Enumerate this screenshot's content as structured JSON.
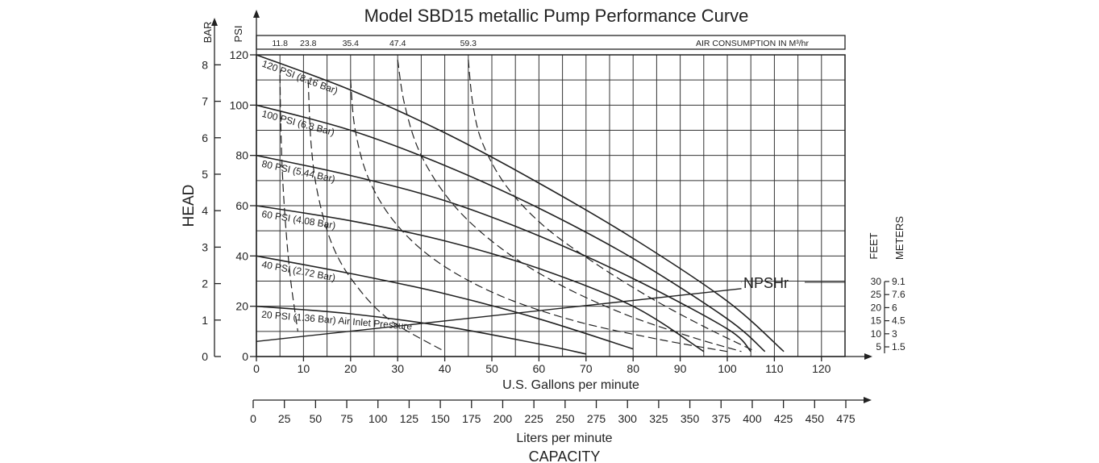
{
  "chart_data": {
    "type": "line",
    "title": "Model  SBD15 metallic Pump Performance Curve",
    "colors": {
      "ink": "#222222",
      "grid": "#333333",
      "background": "#ffffff"
    },
    "xlabel": "U.S. Gallons per minute",
    "x2label": "Liters per minute",
    "capacity_label": "CAPACITY",
    "head_label": "HEAD",
    "bar_label": "BAR",
    "psi_label": "PSI",
    "feet_label": "FEET",
    "meters_label": "METERS",
    "npsh_label": "NPSHr",
    "air_consumption_label": "AIR CONSUMPTION IN M³/hr",
    "xlim": [
      0,
      125
    ],
    "ylim": [
      0,
      120
    ],
    "x_ticks": [
      "0",
      "10",
      "20",
      "30",
      "40",
      "50",
      "60",
      "70",
      "80",
      "90",
      "100",
      "110",
      "120"
    ],
    "x2_ticks": [
      "0",
      "25",
      "50",
      "75",
      "100",
      "125",
      "150",
      "175",
      "200",
      "225",
      "250",
      "275",
      "300",
      "325",
      "350",
      "375",
      "400",
      "425",
      "450",
      "475"
    ],
    "psi_ticks": [
      "0",
      "20",
      "40",
      "60",
      "80",
      "100",
      "120"
    ],
    "bar_ticks": [
      "0",
      "1",
      "2",
      "3",
      "4",
      "5",
      "6",
      "7",
      "8"
    ],
    "npsh_scale": {
      "feet": [
        "5",
        "10",
        "15",
        "20",
        "25",
        "30"
      ],
      "meters": [
        "1.5",
        "3",
        "4.5",
        "6",
        "7.6",
        "9.1"
      ]
    },
    "air_consumption": [
      {
        "label": "11.8",
        "x": 5
      },
      {
        "label": "23.8",
        "x": 11
      },
      {
        "label": "35.4",
        "x": 20
      },
      {
        "label": "47.4",
        "x": 30
      },
      {
        "label": "59.3",
        "x": 45
      }
    ],
    "series": [
      {
        "name": "120 PSI (8.16 Bar)",
        "x": [
          0,
          20,
          40,
          60,
          80,
          100,
          112
        ],
        "y": [
          120,
          106,
          89,
          69,
          47,
          22,
          2
        ]
      },
      {
        "name": "100 PSI (6.8 Bar)",
        "x": [
          0,
          20,
          40,
          60,
          80,
          100,
          108
        ],
        "y": [
          100,
          90,
          76,
          59,
          39,
          15,
          2
        ]
      },
      {
        "name": "80 PSI (5.44 Bar)",
        "x": [
          0,
          20,
          40,
          60,
          80,
          100,
          105
        ],
        "y": [
          80,
          72,
          62,
          48,
          31,
          11,
          2
        ]
      },
      {
        "name": "60 PSI (4.08 Bar)",
        "x": [
          0,
          20,
          40,
          60,
          80,
          95
        ],
        "y": [
          60,
          54,
          46,
          35,
          20,
          2
        ]
      },
      {
        "name": "40 PSI (2.72 Bar)",
        "x": [
          0,
          20,
          40,
          60,
          80
        ],
        "y": [
          40,
          33,
          25,
          15,
          3
        ]
      },
      {
        "name": "20 PSI (1.36 Bar) Air Inlet Pressure",
        "x": [
          0,
          20,
          40,
          60,
          70
        ],
        "y": [
          20,
          17,
          12,
          5,
          1
        ]
      }
    ],
    "air_curves": [
      {
        "name": "11.8",
        "x": [
          5,
          5.2,
          5.6,
          6.3,
          7.3,
          8.8
        ],
        "y": [
          112,
          90,
          70,
          50,
          30,
          10
        ]
      },
      {
        "name": "23.8",
        "x": [
          11,
          11.6,
          13,
          16,
          20.5,
          28,
          40
        ],
        "y": [
          110,
          85,
          65,
          45,
          30,
          15,
          2
        ]
      },
      {
        "name": "35.4",
        "x": [
          20,
          21,
          24,
          30,
          39,
          52,
          68,
          85,
          100
        ],
        "y": [
          110,
          90,
          70,
          52,
          37,
          24,
          14,
          7,
          2
        ]
      },
      {
        "name": "47.4",
        "x": [
          30,
          31.5,
          35,
          42,
          52,
          64,
          78,
          92,
          103
        ],
        "y": [
          118,
          100,
          80,
          60,
          43,
          29,
          17,
          8,
          2
        ]
      },
      {
        "name": "59.3",
        "x": [
          45,
          46,
          48,
          53,
          61,
          72,
          84,
          96,
          106
        ],
        "y": [
          118,
          100,
          85,
          68,
          52,
          37,
          23,
          11,
          2
        ]
      }
    ],
    "npsh_line": {
      "name": "NPSHr",
      "x": [
        0,
        103
      ],
      "y": [
        6,
        27
      ]
    },
    "grid": true,
    "legend": "none"
  }
}
